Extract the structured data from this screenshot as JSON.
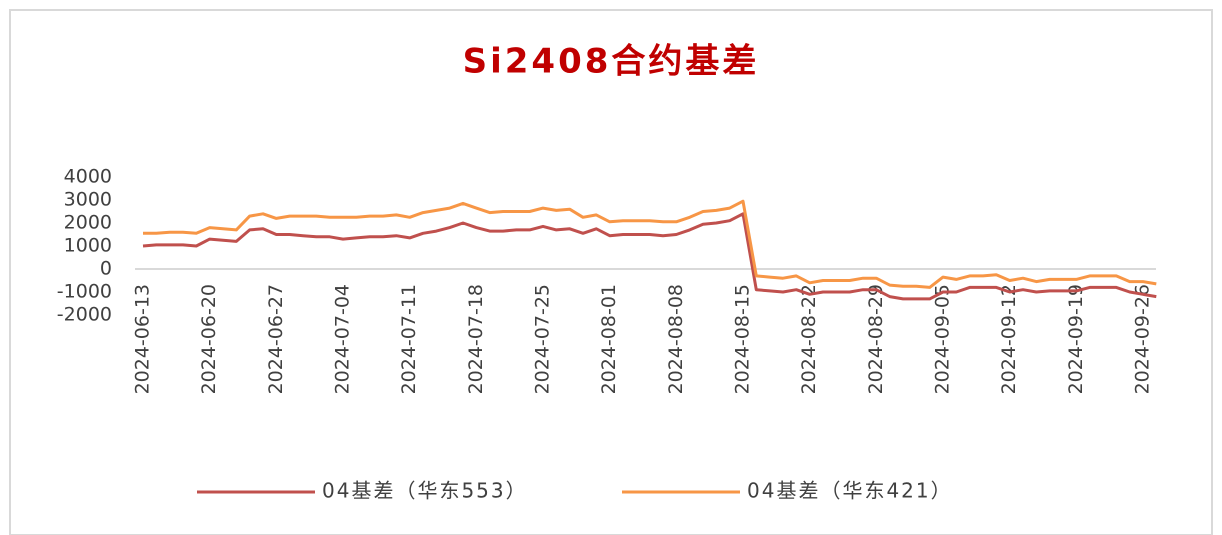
{
  "chart_data": {
    "type": "line",
    "title": "Si2408合约基差",
    "categories": [
      "2024-06-13",
      null,
      null,
      null,
      null,
      "2024-06-20",
      null,
      null,
      null,
      null,
      "2024-06-27",
      null,
      null,
      null,
      null,
      "2024-07-04",
      null,
      null,
      null,
      null,
      "2024-07-11",
      null,
      null,
      null,
      null,
      "2024-07-18",
      null,
      null,
      null,
      null,
      "2024-07-25",
      null,
      null,
      null,
      null,
      "2024-08-01",
      null,
      null,
      null,
      null,
      "2024-08-08",
      null,
      null,
      null,
      null,
      "2024-08-15",
      null,
      null,
      null,
      null,
      "2024-08-22",
      null,
      null,
      null,
      null,
      "2024-08-29",
      null,
      null,
      null,
      null,
      "2024-09-05",
      null,
      null,
      null,
      null,
      "2024-09-12",
      null,
      null,
      null,
      null,
      "2024-09-19",
      null,
      null,
      null,
      null,
      "2024-09-26",
      null
    ],
    "series": [
      {
        "name": "04基差（华东553）",
        "color": "#c0504d",
        "values": [
          1000,
          1050,
          1050,
          1050,
          1000,
          1300,
          1250,
          1200,
          1700,
          1750,
          1500,
          1500,
          1450,
          1400,
          1400,
          1300,
          1350,
          1400,
          1400,
          1450,
          1350,
          1550,
          1650,
          1800,
          2000,
          1800,
          1650,
          1650,
          1700,
          1700,
          1850,
          1700,
          1750,
          1550,
          1750,
          1450,
          1500,
          1500,
          1500,
          1450,
          1500,
          1700,
          1950,
          2000,
          2100,
          2400,
          -900,
          -950,
          -1000,
          -900,
          -1100,
          -1000,
          -1000,
          -1000,
          -900,
          -900,
          -1200,
          -1300,
          -1300,
          -1300,
          -1000,
          -1000,
          -800,
          -800,
          -800,
          -1000,
          -900,
          -1000,
          -950,
          -950,
          -950,
          -800,
          -800,
          -800,
          -1000,
          -1100,
          -1200
        ]
      },
      {
        "name": "04基差（华东421）",
        "color": "#f79646",
        "values": [
          1550,
          1550,
          1600,
          1600,
          1550,
          1800,
          1750,
          1700,
          2300,
          2400,
          2200,
          2300,
          2300,
          2300,
          2250,
          2250,
          2250,
          2300,
          2300,
          2350,
          2250,
          2450,
          2550,
          2650,
          2850,
          2650,
          2450,
          2500,
          2500,
          2500,
          2650,
          2550,
          2600,
          2250,
          2350,
          2050,
          2100,
          2100,
          2100,
          2050,
          2050,
          2250,
          2500,
          2550,
          2650,
          2950,
          -300,
          -350,
          -400,
          -300,
          -600,
          -500,
          -500,
          -500,
          -400,
          -400,
          -700,
          -750,
          -750,
          -800,
          -350,
          -450,
          -300,
          -300,
          -250,
          -500,
          -400,
          -550,
          -450,
          -450,
          -450,
          -300,
          -300,
          -300,
          -550,
          -550,
          -650
        ]
      }
    ],
    "ylim": [
      -2000,
      4000
    ],
    "yticks": [
      -2000,
      -1000,
      0,
      1000,
      2000,
      3000,
      4000
    ]
  }
}
